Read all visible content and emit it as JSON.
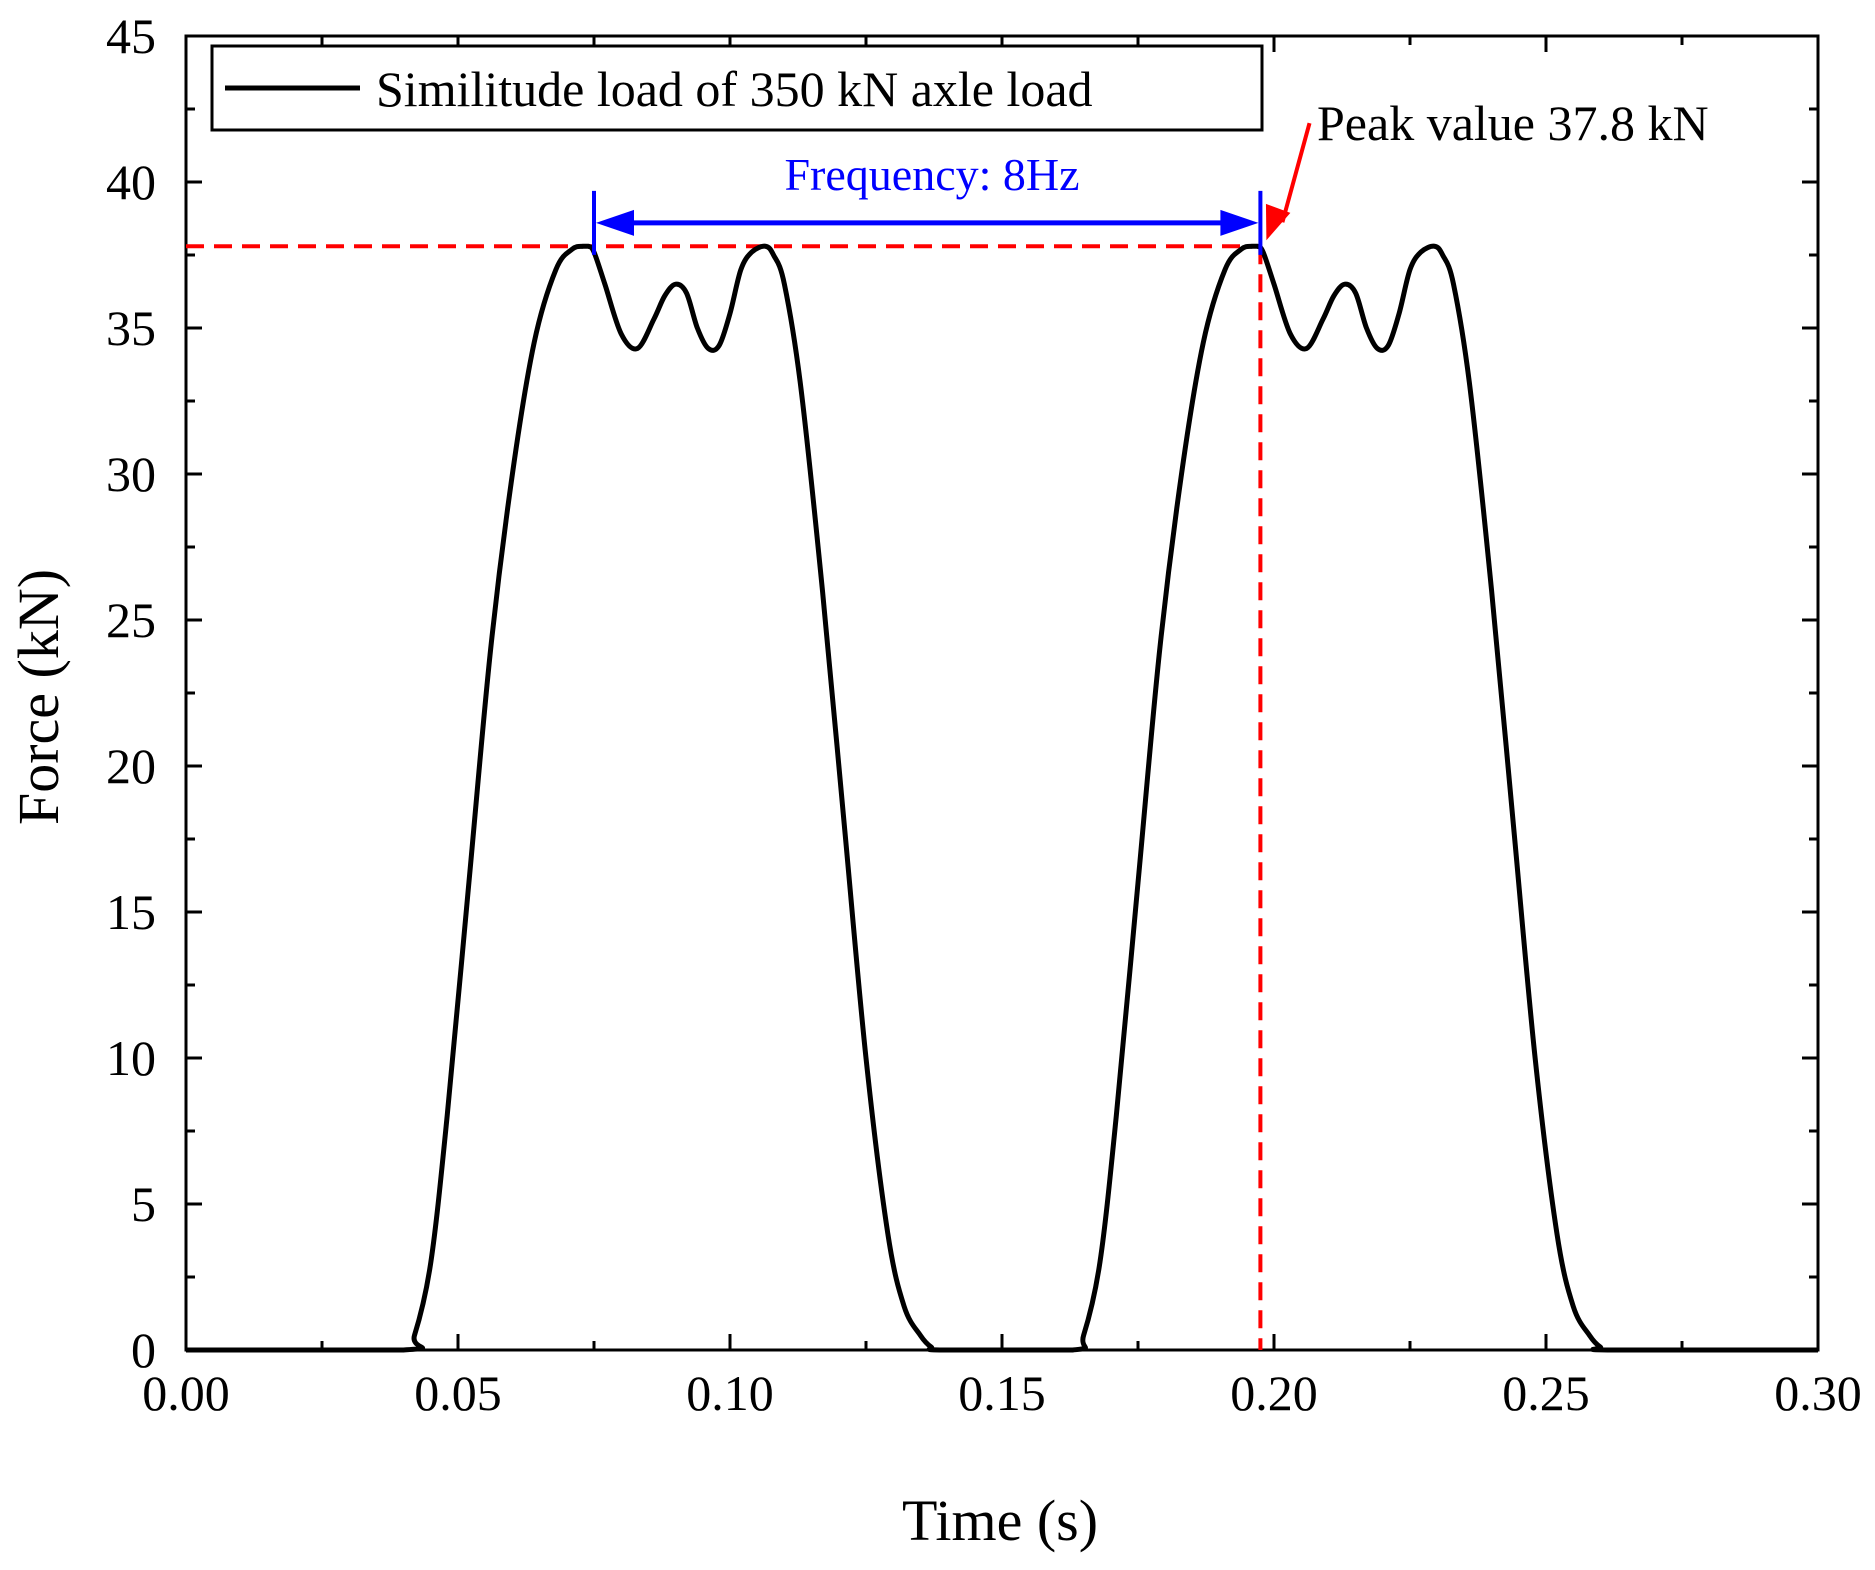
{
  "chart_data": {
    "type": "line",
    "title": "",
    "xlabel": "Time (s)",
    "ylabel": "Force (kN)",
    "xlim": [
      0,
      0.3
    ],
    "ylim": [
      0,
      45
    ],
    "x_ticks": [
      0.0,
      0.05,
      0.1,
      0.15,
      0.2,
      0.25,
      0.3
    ],
    "x_tick_labels": [
      "0.00",
      "0.05",
      "0.10",
      "0.15",
      "0.20",
      "0.25",
      "0.30"
    ],
    "y_ticks": [
      0,
      5,
      10,
      15,
      20,
      25,
      30,
      35,
      40,
      45
    ],
    "y_tick_labels": [
      "0",
      "5",
      "10",
      "15",
      "20",
      "25",
      "30",
      "35",
      "40",
      "45"
    ],
    "grid": false,
    "legend": {
      "position": "top-left",
      "entries": [
        "Similitude load of 350 kN axle load"
      ]
    },
    "series": [
      {
        "name": "Similitude load of 350 kN axle load",
        "color": "#000000",
        "x": [
          0.0,
          0.04,
          0.042,
          0.045,
          0.048,
          0.052,
          0.056,
          0.06,
          0.064,
          0.068,
          0.071,
          0.073,
          0.074,
          0.075,
          0.077,
          0.08,
          0.083,
          0.086,
          0.088,
          0.09,
          0.092,
          0.094,
          0.096,
          0.098,
          0.1,
          0.102,
          0.104,
          0.1065,
          0.108,
          0.11,
          0.113,
          0.117,
          0.121,
          0.125,
          0.129,
          0.132,
          0.135,
          0.137,
          0.139,
          0.163,
          0.165,
          0.168,
          0.171,
          0.175,
          0.179,
          0.183,
          0.187,
          0.191,
          0.194,
          0.196,
          0.197,
          0.198,
          0.2,
          0.203,
          0.206,
          0.209,
          0.211,
          0.213,
          0.215,
          0.217,
          0.219,
          0.221,
          0.223,
          0.225,
          0.227,
          0.2295,
          0.231,
          0.233,
          0.236,
          0.24,
          0.244,
          0.248,
          0.252,
          0.255,
          0.258,
          0.26,
          0.262,
          0.3
        ],
        "y": [
          0,
          0,
          0.5,
          3,
          8,
          16,
          24,
          30,
          34.5,
          37,
          37.7,
          37.8,
          37.8,
          37.6,
          36.5,
          34.8,
          34.3,
          35.3,
          36.1,
          36.5,
          36.2,
          35.0,
          34.3,
          34.4,
          35.5,
          37.0,
          37.6,
          37.8,
          37.5,
          36.5,
          33,
          26,
          18,
          10,
          4,
          1.5,
          0.5,
          0.1,
          0,
          0,
          0.5,
          3,
          8,
          16,
          24,
          30,
          34.5,
          37,
          37.7,
          37.8,
          37.8,
          37.6,
          36.5,
          34.8,
          34.3,
          35.3,
          36.1,
          36.5,
          36.2,
          35.0,
          34.3,
          34.4,
          35.5,
          37.0,
          37.6,
          37.8,
          37.5,
          36.5,
          33,
          26,
          18,
          10,
          4,
          1.5,
          0.5,
          0.1,
          0,
          0
        ]
      }
    ],
    "annotations": {
      "frequency": {
        "text": "Frequency: 8Hz",
        "x_start": 0.075,
        "x_end": 0.1975,
        "y": 38.6,
        "color": "#0000ff"
      },
      "peak": {
        "text": "Peak value 37.8 kN",
        "peak_x": 0.1975,
        "peak_y": 37.8,
        "text_x": 0.208,
        "text_y": 41.4,
        "color": "#ff0000"
      },
      "reference_lines": {
        "horizontal_y": 37.8,
        "vertical_x": 0.1975,
        "color": "#ff0000"
      }
    }
  }
}
